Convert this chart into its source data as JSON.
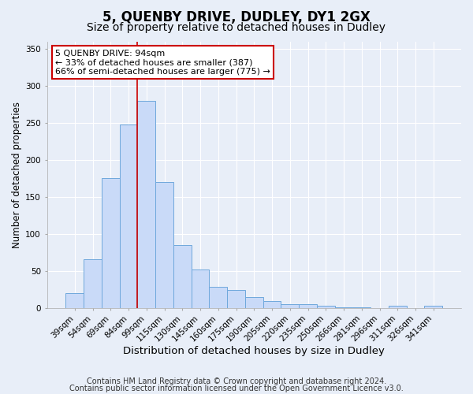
{
  "title": "5, QUENBY DRIVE, DUDLEY, DY1 2GX",
  "subtitle": "Size of property relative to detached houses in Dudley",
  "xlabel": "Distribution of detached houses by size in Dudley",
  "ylabel": "Number of detached properties",
  "bar_labels": [
    "39sqm",
    "54sqm",
    "69sqm",
    "84sqm",
    "99sqm",
    "115sqm",
    "130sqm",
    "145sqm",
    "160sqm",
    "175sqm",
    "190sqm",
    "205sqm",
    "220sqm",
    "235sqm",
    "250sqm",
    "266sqm",
    "281sqm",
    "296sqm",
    "311sqm",
    "326sqm",
    "341sqm"
  ],
  "bar_values": [
    20,
    66,
    175,
    248,
    280,
    170,
    85,
    52,
    29,
    24,
    15,
    9,
    5,
    5,
    3,
    1,
    1,
    0,
    3,
    0,
    3
  ],
  "bar_color": "#c9daf8",
  "bar_edge_color": "#6fa8dc",
  "vline_x_idx": 4,
  "vline_color": "#cc0000",
  "ylim": [
    0,
    360
  ],
  "yticks": [
    0,
    50,
    100,
    150,
    200,
    250,
    300,
    350
  ],
  "annotation_title": "5 QUENBY DRIVE: 94sqm",
  "annotation_line1": "← 33% of detached houses are smaller (387)",
  "annotation_line2": "66% of semi-detached houses are larger (775) →",
  "annotation_box_edge": "#cc0000",
  "footer_line1": "Contains HM Land Registry data © Crown copyright and database right 2024.",
  "footer_line2": "Contains public sector information licensed under the Open Government Licence v3.0.",
  "bg_color": "#e8eef8",
  "plot_bg_color": "#e8eef8",
  "grid_color": "#ffffff",
  "title_fontsize": 12,
  "subtitle_fontsize": 10,
  "xlabel_fontsize": 9.5,
  "ylabel_fontsize": 8.5,
  "tick_fontsize": 7.5,
  "footer_fontsize": 7,
  "ann_fontsize": 8
}
